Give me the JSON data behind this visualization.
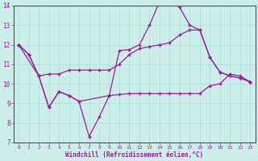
{
  "xlabel": "Windchill (Refroidissement éolien,°C)",
  "xlim": [
    -0.5,
    23.5
  ],
  "ylim": [
    7,
    14
  ],
  "xticks": [
    0,
    1,
    2,
    3,
    4,
    5,
    6,
    7,
    8,
    9,
    10,
    11,
    12,
    13,
    14,
    15,
    16,
    17,
    18,
    19,
    20,
    21,
    22,
    23
  ],
  "yticks": [
    7,
    8,
    9,
    10,
    11,
    12,
    13,
    14
  ],
  "bg_color": "#cceee8",
  "line_color": "#9B1B9E",
  "grid_color": "#aadddd",
  "series": [
    {
      "x": [
        0,
        1,
        2,
        3,
        4,
        5,
        6,
        7,
        8,
        9,
        10,
        11,
        12,
        13,
        14,
        15,
        16,
        17,
        18,
        19,
        20,
        21,
        22,
        23
      ],
      "y": [
        12.0,
        11.5,
        10.4,
        8.8,
        9.6,
        9.4,
        9.1,
        7.3,
        8.3,
        9.4,
        9.45,
        9.5,
        9.5,
        9.5,
        9.5,
        9.5,
        9.5,
        9.5,
        9.5,
        9.9,
        10.0,
        10.5,
        10.4,
        10.1
      ]
    },
    {
      "x": [
        0,
        1,
        2,
        3,
        4,
        5,
        6,
        7,
        8,
        9,
        10,
        11,
        12,
        13,
        14,
        15,
        16,
        17,
        18,
        19,
        20,
        21,
        22,
        23
      ],
      "y": [
        12.0,
        11.5,
        10.4,
        10.5,
        10.5,
        10.7,
        10.7,
        10.7,
        10.7,
        10.7,
        11.0,
        11.5,
        11.8,
        11.9,
        12.0,
        12.1,
        12.5,
        12.75,
        12.75,
        11.35,
        10.6,
        10.4,
        10.3,
        10.1
      ]
    },
    {
      "x": [
        0,
        2,
        3,
        4,
        5,
        6,
        9,
        10,
        11,
        12,
        13,
        14,
        15,
        16,
        17,
        18,
        19,
        20,
        21,
        22,
        23
      ],
      "y": [
        12.0,
        10.4,
        8.8,
        9.6,
        9.4,
        9.1,
        9.4,
        11.7,
        11.75,
        12.0,
        13.0,
        14.2,
        14.25,
        13.9,
        13.0,
        12.75,
        11.35,
        10.6,
        10.4,
        10.3,
        10.1
      ]
    }
  ]
}
